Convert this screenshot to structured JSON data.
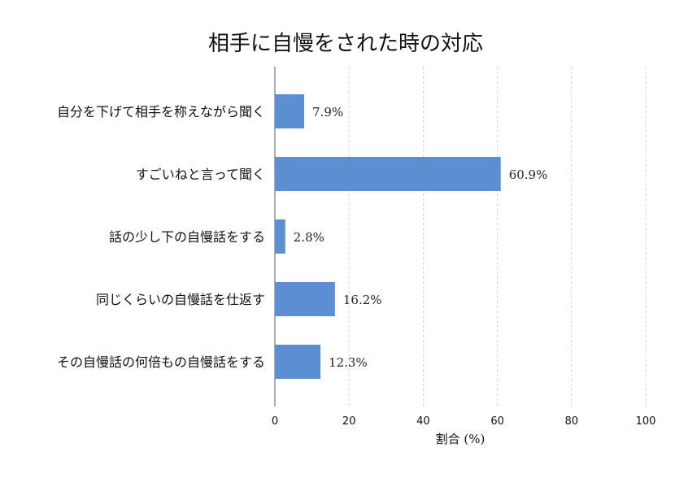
{
  "chart_data": {
    "type": "bar",
    "orientation": "horizontal",
    "title": "相手に自慢をされた時の対応",
    "xlabel": "割合 (%)",
    "ylabel": "",
    "xlim": [
      0,
      100
    ],
    "x_ticks": [
      0,
      20,
      40,
      60,
      80,
      100
    ],
    "grid": true,
    "bar_color": "#5b8fd1",
    "categories": [
      "自分を下げて相手を称えながら聞く",
      "すごいねと言って聞く",
      "話の少し下の自慢話をする",
      "同じくらいの自慢話を仕返す",
      "その自慢話の何倍もの自慢話をする"
    ],
    "values": [
      7.9,
      60.9,
      2.8,
      16.2,
      12.3
    ],
    "value_labels": [
      "7.9%",
      "60.9%",
      "2.8%",
      "16.2%",
      "12.3%"
    ]
  }
}
